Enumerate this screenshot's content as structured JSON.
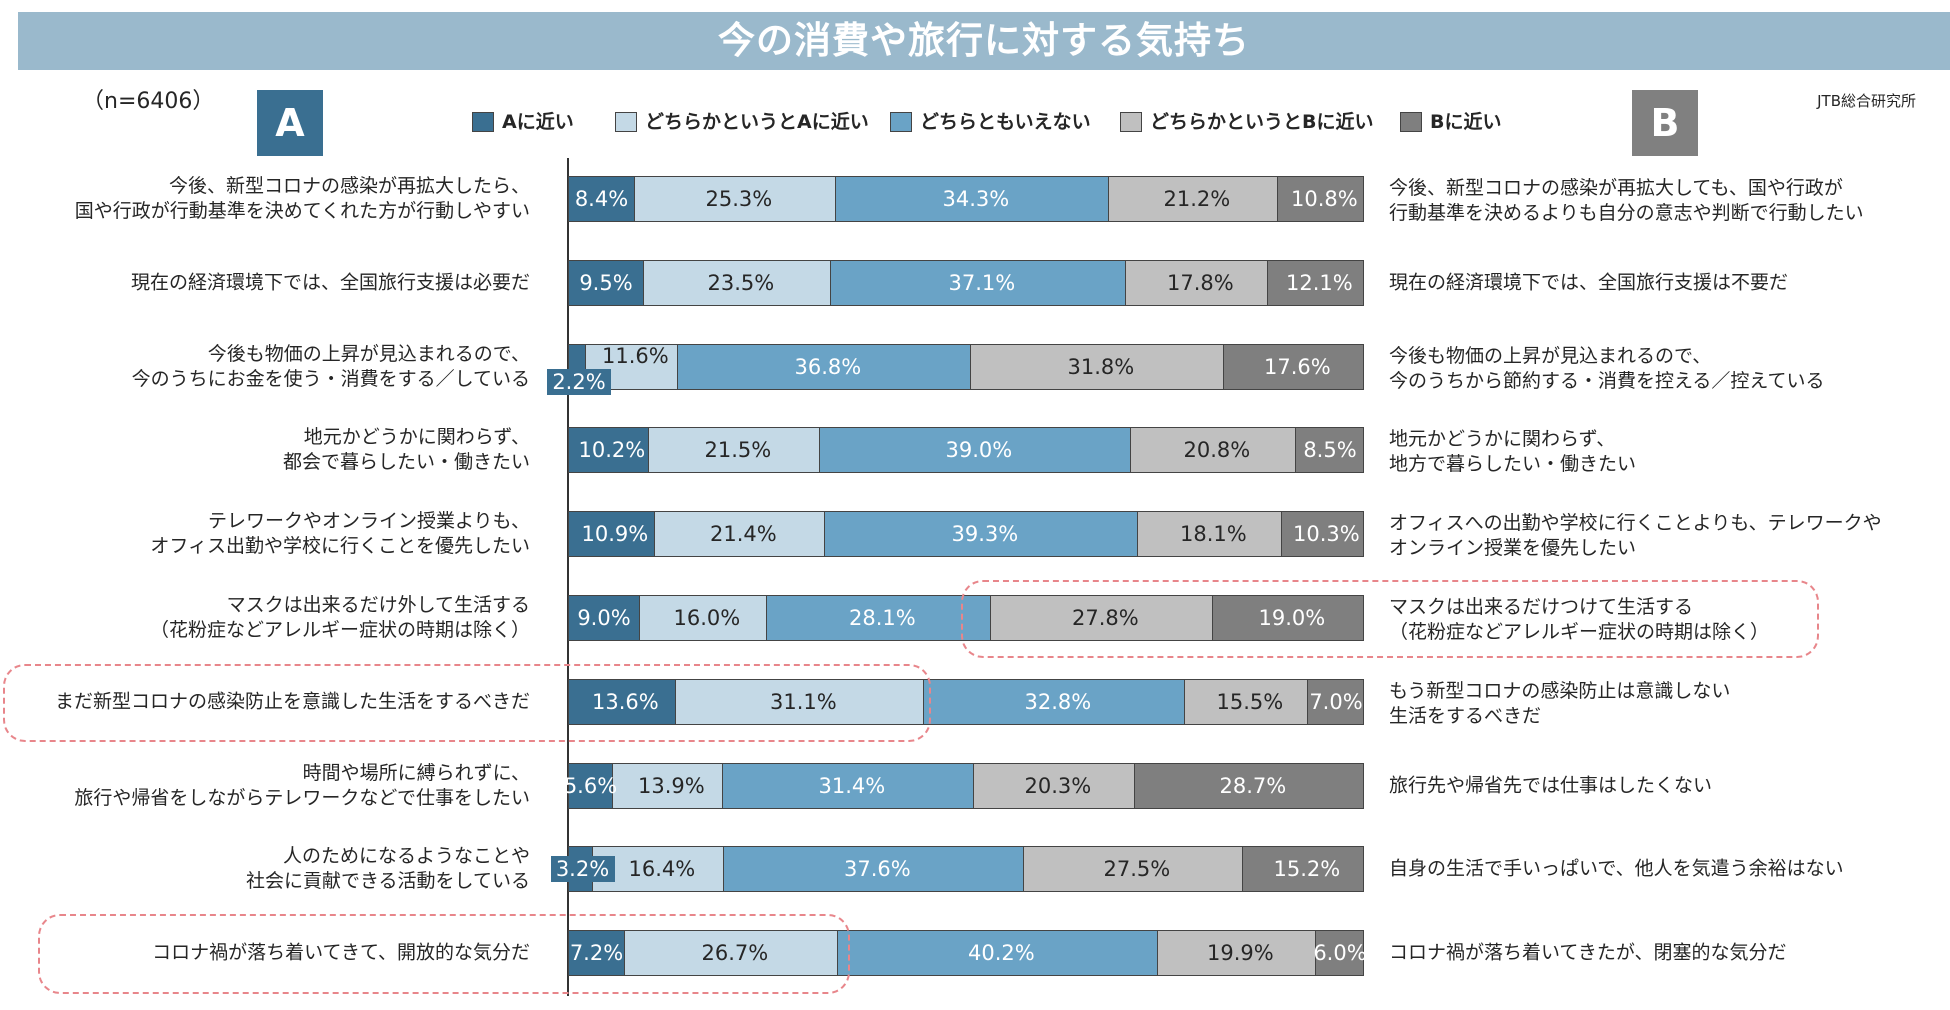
{
  "title": "今の消費や旅行に対する気持ち",
  "sample": "（n=6406）",
  "source": "JTB総合研究所",
  "box_a": "A",
  "box_b": "B",
  "chart_data": {
    "type": "bar",
    "orientation": "horizontal-stacked-100",
    "title": "今の消費や旅行に対する気持ち",
    "series": [
      {
        "name": "Aに近い",
        "color": "#3a6f91",
        "text_color": "#ffffff"
      },
      {
        "name": "どちらかというとAに近い",
        "color": "#c4d9e6",
        "text_color": "#262626"
      },
      {
        "name": "どちらともいえない",
        "color": "#6aa3c6",
        "text_color": "#ffffff"
      },
      {
        "name": "どちらかというとBに近い",
        "color": "#c0c0c0",
        "text_color": "#262626"
      },
      {
        "name": "Bに近い",
        "color": "#7f7f7f",
        "text_color": "#ffffff"
      }
    ],
    "rows": [
      {
        "a": "今後、新型コロナの感染が再拡大したら、\n国や行政が行動基準を決めてくれた方が行動しやすい",
        "b": "今後、新型コロナの感染が再拡大しても、国や行政が\n行動基準を決めるよりも自分の意志や判断で行動したい",
        "values": [
          8.4,
          25.3,
          34.3,
          21.2,
          10.8
        ],
        "labels": [
          "8.4%",
          "25.3%",
          "34.3%",
          "21.2%",
          "10.8%"
        ]
      },
      {
        "a": "現在の経済環境下では、全国旅行支援は必要だ",
        "b": "現在の経済環境下では、全国旅行支援は不要だ",
        "values": [
          9.5,
          23.5,
          37.1,
          17.8,
          12.1
        ],
        "labels": [
          "9.5%",
          "23.5%",
          "37.1%",
          "17.8%",
          "12.1%"
        ]
      },
      {
        "a": "今後も物価の上昇が見込まれるので、\n今のうちにお金を使う・消費をする／している",
        "b": "今後も物価の上昇が見込まれるので、\n今のうちから節約する・消費を控える／控えている",
        "values": [
          2.2,
          11.6,
          36.8,
          31.8,
          17.6
        ],
        "labels": [
          "2.2%",
          "11.6%",
          "36.8%",
          "31.8%",
          "17.6%"
        ]
      },
      {
        "a": "地元かどうかに関わらず、\n都会で暮らしたい・働きたい",
        "b": "地元かどうかに関わらず、\n地方で暮らしたい・働きたい",
        "values": [
          10.2,
          21.5,
          39.0,
          20.8,
          8.5
        ],
        "labels": [
          "10.2%",
          "21.5%",
          "39.0%",
          "20.8%",
          "8.5%"
        ]
      },
      {
        "a": "テレワークやオンライン授業よりも、\nオフィス出勤や学校に行くことを優先したい",
        "b": "オフィスへの出勤や学校に行くことよりも、テレワークや\nオンライン授業を優先したい",
        "values": [
          10.9,
          21.4,
          39.3,
          18.1,
          10.3
        ],
        "labels": [
          "10.9%",
          "21.4%",
          "39.3%",
          "18.1%",
          "10.3%"
        ]
      },
      {
        "a": "マスクは出来るだけ外して生活する\n（花粉症などアレルギー症状の時期は除く）",
        "b": "マスクは出来るだけつけて生活する\n（花粉症などアレルギー症状の時期は除く）",
        "values": [
          9.0,
          16.0,
          28.1,
          27.8,
          19.0
        ],
        "labels": [
          "9.0%",
          "16.0%",
          "28.1%",
          "27.8%",
          "19.0%"
        ]
      },
      {
        "a": "まだ新型コロナの感染防止を意識した生活をするべきだ",
        "b": "もう新型コロナの感染防止は意識しない\n生活をするべきだ",
        "values": [
          13.6,
          31.1,
          32.8,
          15.5,
          7.0
        ],
        "labels": [
          "13.6%",
          "31.1%",
          "32.8%",
          "15.5%",
          "7.0%"
        ]
      },
      {
        "a": "時間や場所に縛られずに、\n旅行や帰省をしながらテレワークなどで仕事をしたい",
        "b": "旅行先や帰省先では仕事はしたくない",
        "values": [
          5.6,
          13.9,
          31.4,
          20.3,
          28.7
        ],
        "labels": [
          "5.6%",
          "13.9%",
          "31.4%",
          "20.3%",
          "28.7%"
        ]
      },
      {
        "a": "人のためになるようなことや\n社会に貢献できる活動をしている",
        "b": "自身の生活で手いっぱいで、他人を気遣う余裕はない",
        "values": [
          3.2,
          16.4,
          37.6,
          27.5,
          15.2
        ],
        "labels": [
          "3.2%",
          "16.4%",
          "37.6%",
          "27.5%",
          "15.2%"
        ]
      },
      {
        "a": "コロナ禍が落ち着いてきて、開放的な気分だ",
        "b": "コロナ禍が落ち着いてきたが、閉塞的な気分だ",
        "values": [
          7.2,
          26.7,
          40.2,
          19.9,
          6.0
        ],
        "labels": [
          "7.2%",
          "26.7%",
          "40.2%",
          "19.9%",
          "6.0%"
        ]
      }
    ],
    "highlighted": [
      "row 6 right side (マスクは出来るだけつけて…)",
      "row 7 left side",
      "row 10 left side"
    ]
  }
}
